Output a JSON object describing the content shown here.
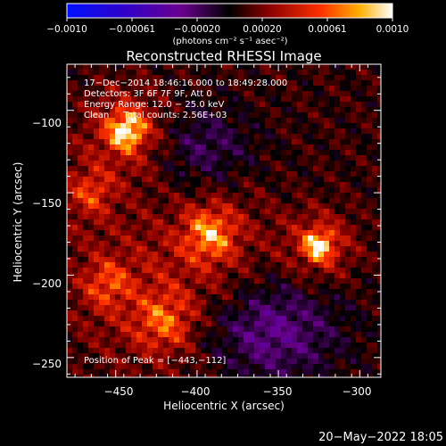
{
  "chart_data": {
    "type": "heatmap",
    "title": "Reconstructed RHESSI Image",
    "xlabel": "Heliocentric X (arcsec)",
    "ylabel": "Heliocentric Y (arcsec)",
    "xlim": [
      -480,
      -287
    ],
    "ylim": [
      -262,
      -72
    ],
    "xticks": [
      -450,
      -400,
      -350,
      -300
    ],
    "yticks": [
      -100,
      -150,
      -200,
      -250
    ],
    "xtick_labels": [
      "−450",
      "−400",
      "−350",
      "−300"
    ],
    "ytick_labels": [
      "−100",
      "−150",
      "−200",
      "−250"
    ],
    "colorbar": {
      "range": [
        -0.001,
        0.001
      ],
      "tick_labels": [
        "−0.0010",
        "−0.00061",
        "−0.00020",
        "0.00020",
        "0.00061",
        "0.0010"
      ],
      "unit_label": "(photons cm⁻² s⁻¹ asec⁻²)"
    },
    "annotations": [
      "17−Dec−2014 18:46:16.000 to 18:49:28.000",
      "Detectors: 3F 6F 7F 9F, Att 0",
      "Energy Range: 12.0 − 25.0 keV",
      "Clean     Total counts: 2.56E+03"
    ],
    "peak_label": "Position of Peak = [−443,−112]",
    "peak": [
      -443,
      -112
    ],
    "sources": [
      {
        "x": -443,
        "y": -112,
        "amp": 1.0,
        "w": 14
      },
      {
        "x": -325,
        "y": -182,
        "amp": 0.95,
        "w": 12
      },
      {
        "x": -392,
        "y": -175,
        "amp": 0.7,
        "w": 20
      },
      {
        "x": -420,
        "y": -228,
        "amp": 0.55,
        "w": 22
      },
      {
        "x": -465,
        "y": -150,
        "amp": 0.45,
        "w": 16
      },
      {
        "x": -455,
        "y": -205,
        "amp": 0.45,
        "w": 18
      }
    ]
  },
  "footer": {
    "date_stamp": "20−May−2022 18:05"
  }
}
